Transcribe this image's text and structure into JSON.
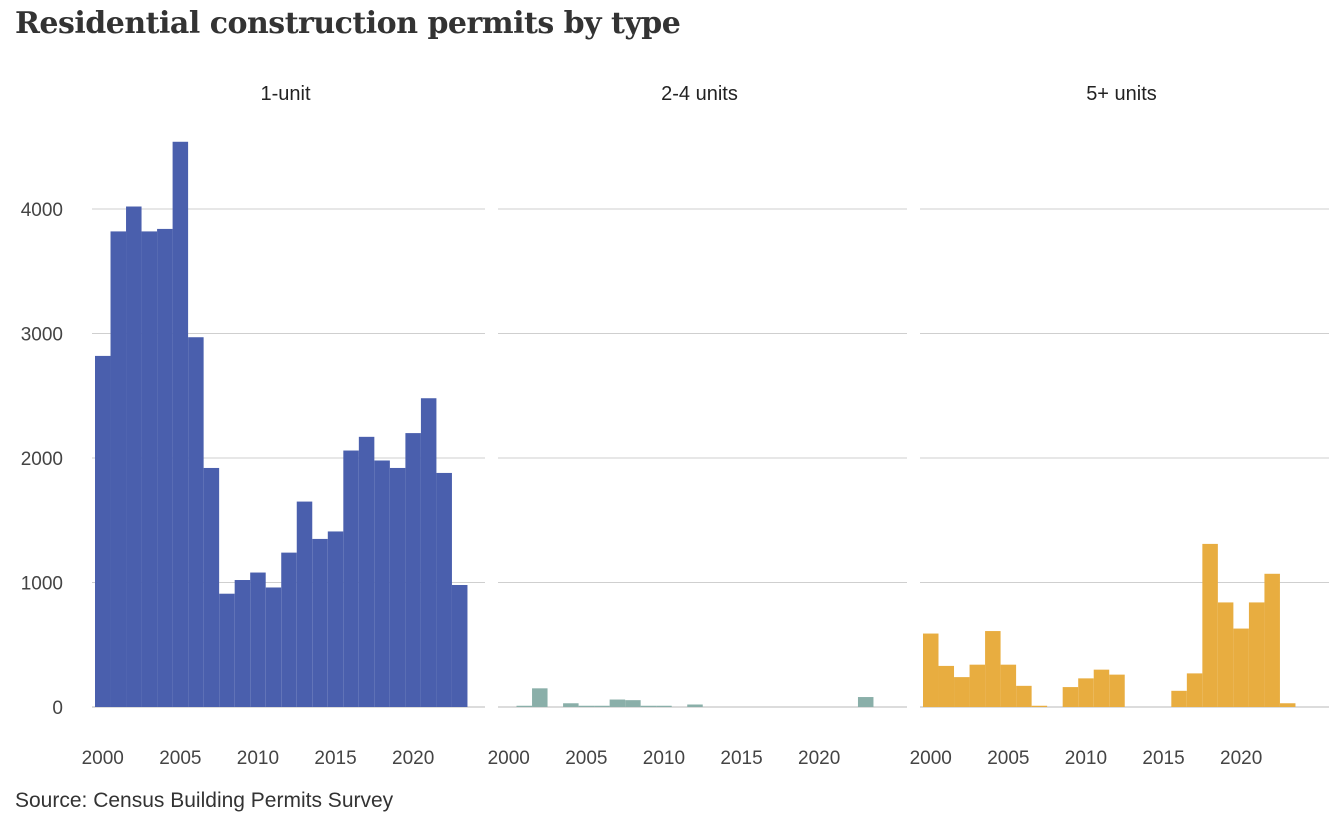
{
  "title": "Residential construction permits by type",
  "source": "Source: Census Building Permits  Survey",
  "chart_data": {
    "type": "bar",
    "x": [
      2000,
      2001,
      2002,
      2003,
      2004,
      2005,
      2006,
      2007,
      2008,
      2009,
      2010,
      2011,
      2012,
      2013,
      2014,
      2015,
      2016,
      2017,
      2018,
      2019,
      2020,
      2021,
      2022,
      2023
    ],
    "x_ticks": [
      2000,
      2005,
      2010,
      2015,
      2020
    ],
    "y_ticks": [
      0,
      1000,
      2000,
      3000,
      4000
    ],
    "ylim": [
      0,
      4700
    ],
    "grid": true,
    "series": [
      {
        "name": "1-unit",
        "color": "#4a5fad",
        "values": [
          2820,
          3820,
          4020,
          3820,
          3840,
          4540,
          2970,
          1920,
          910,
          1020,
          1080,
          960,
          1240,
          1650,
          1350,
          1410,
          2060,
          2170,
          1980,
          1920,
          2200,
          2480,
          1880,
          980
        ]
      },
      {
        "name": "2-4 units",
        "color": "#8aafa9",
        "values": [
          0,
          10,
          150,
          0,
          30,
          10,
          10,
          60,
          55,
          10,
          10,
          0,
          20,
          0,
          0,
          0,
          0,
          0,
          0,
          0,
          0,
          0,
          0,
          80
        ]
      },
      {
        "name": "5+ units",
        "color": "#e8ad40",
        "values": [
          590,
          330,
          240,
          340,
          610,
          340,
          170,
          10,
          0,
          160,
          230,
          300,
          260,
          0,
          0,
          0,
          130,
          270,
          1310,
          840,
          630,
          840,
          1070,
          30
        ]
      }
    ]
  }
}
